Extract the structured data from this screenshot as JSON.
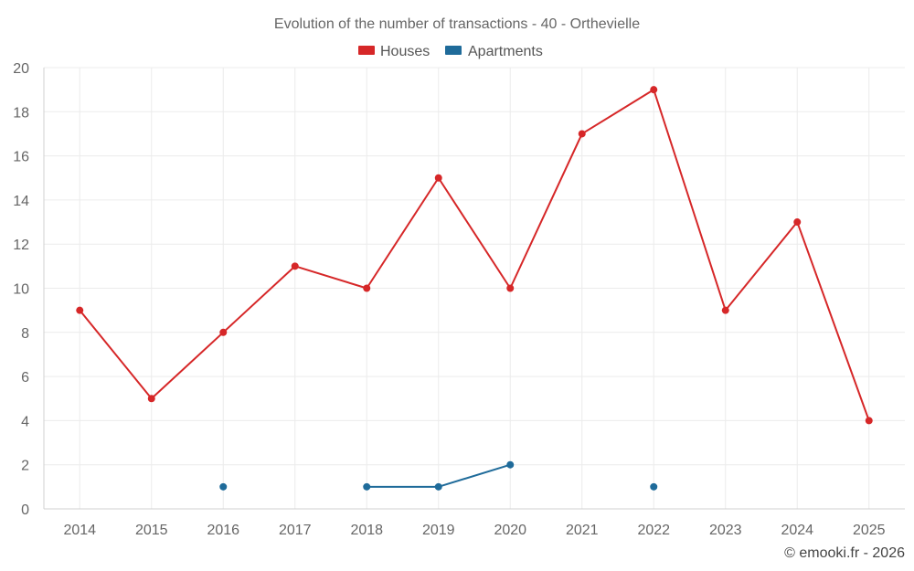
{
  "chart_data": {
    "type": "line",
    "title": "Evolution of the number of transactions - 40 - Orthevielle",
    "x": [
      "2014",
      "2015",
      "2016",
      "2017",
      "2018",
      "2019",
      "2020",
      "2021",
      "2022",
      "2023",
      "2024",
      "2025"
    ],
    "ylim": [
      0,
      20
    ],
    "yticks": [
      0,
      2,
      4,
      6,
      8,
      10,
      12,
      14,
      16,
      18,
      20
    ],
    "grid": true,
    "legend_position": "top-center",
    "series": [
      {
        "name": "Houses",
        "color": "#d62728",
        "values": [
          9,
          5,
          8,
          11,
          10,
          15,
          10,
          17,
          19,
          9,
          13,
          4
        ]
      },
      {
        "name": "Apartments",
        "color": "#1f6b9a",
        "values": [
          null,
          null,
          1,
          null,
          1,
          1,
          2,
          null,
          1,
          null,
          null,
          null
        ]
      }
    ]
  },
  "credit": "© emooki.fr - 2026"
}
